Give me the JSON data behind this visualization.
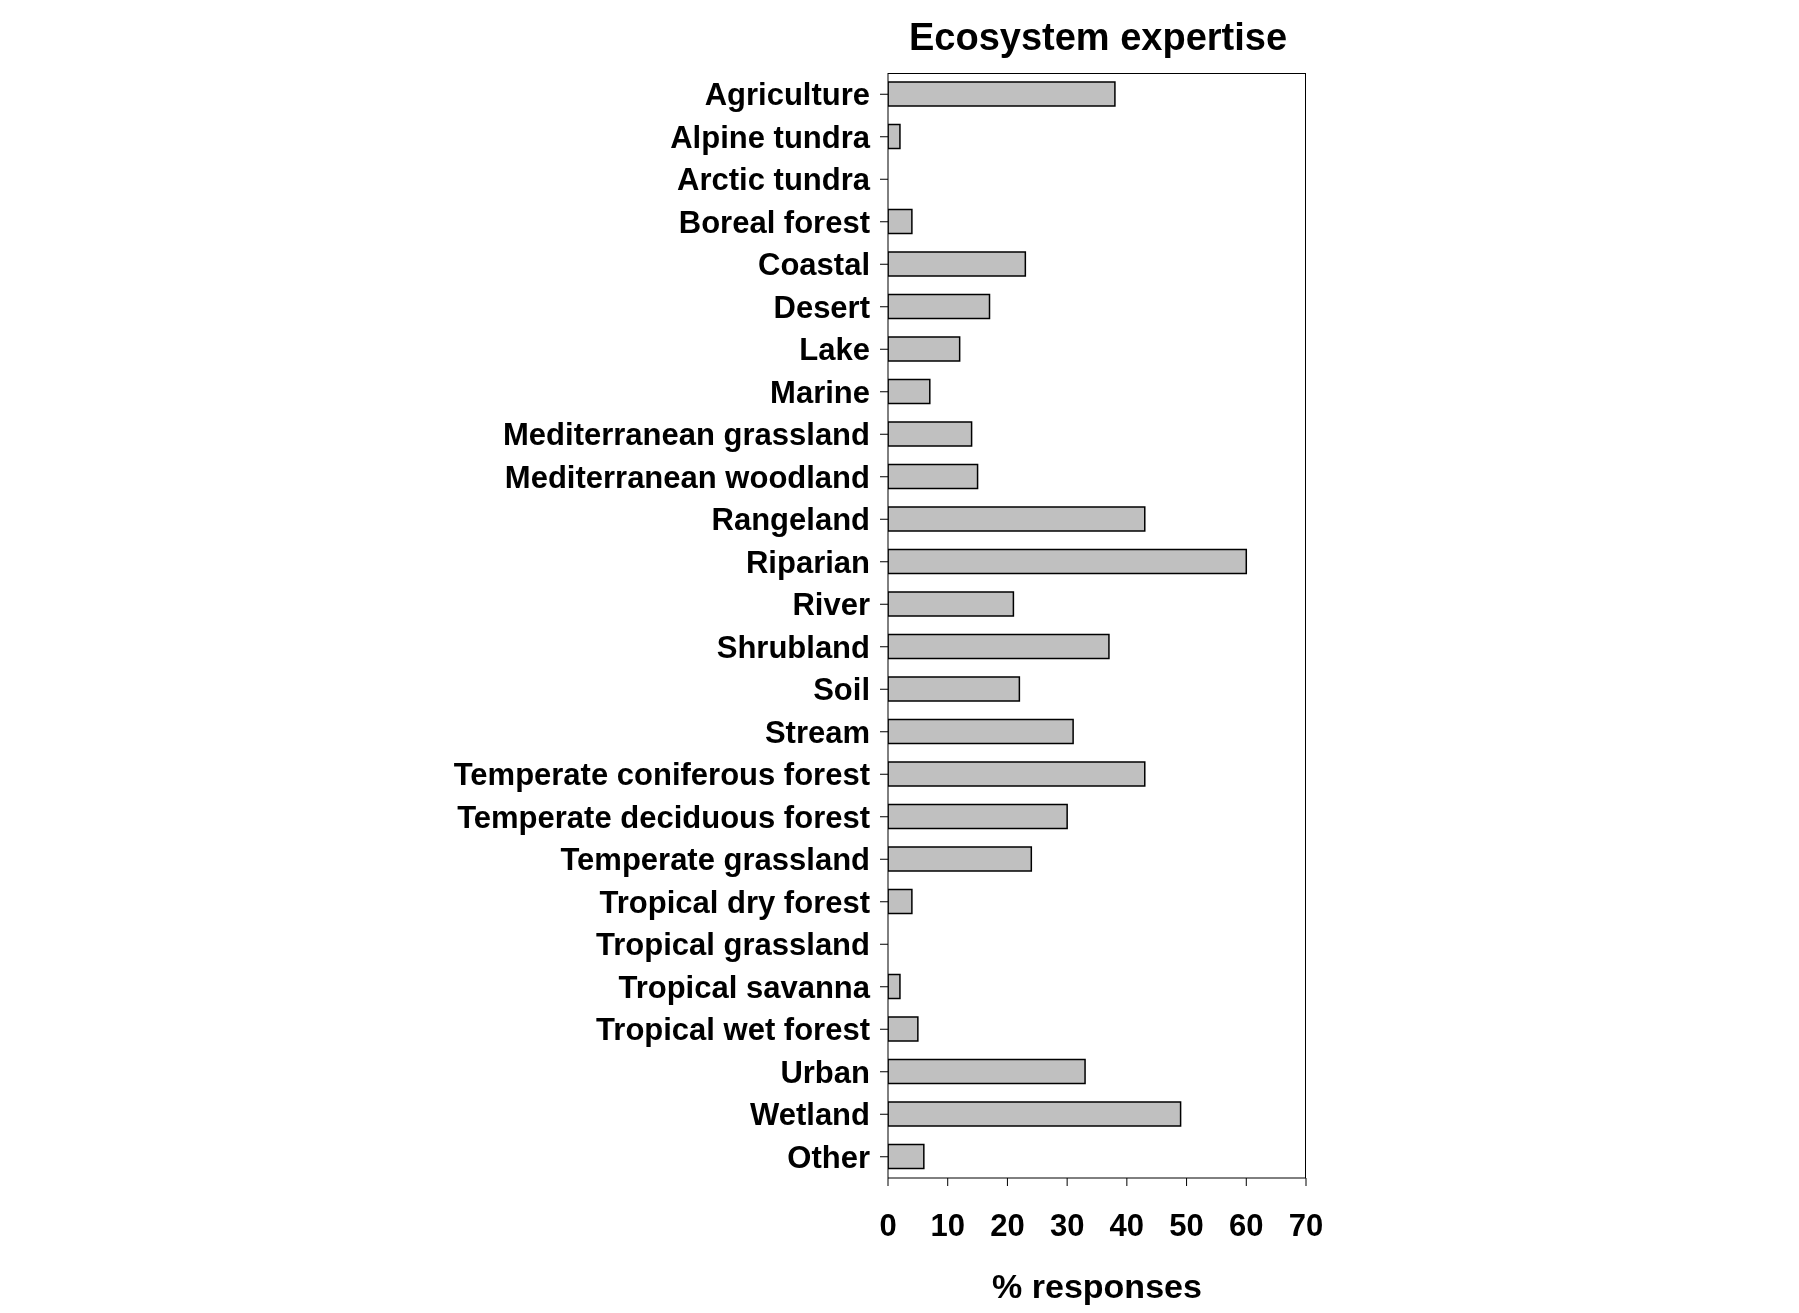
{
  "chart_data": {
    "type": "bar",
    "orientation": "horizontal",
    "title": "Ecosystem expertise",
    "xlabel": "% responses",
    "categories": [
      "Agriculture",
      "Alpine tundra",
      "Arctic tundra",
      "Boreal forest",
      "Coastal",
      "Desert",
      "Lake",
      "Marine",
      "Mediterranean grassland",
      "Mediterranean woodland",
      "Rangeland",
      "Riparian",
      "River",
      "Shrubland",
      "Soil",
      "Stream",
      "Temperate coniferous forest",
      "Temperate deciduous forest",
      "Temperate grassland",
      "Tropical dry forest",
      "Tropical grassland",
      "Tropical savanna",
      "Tropical wet forest",
      "Urban",
      "Wetland",
      "Other"
    ],
    "values": [
      38,
      2,
      0,
      4,
      23,
      17,
      12,
      7,
      14,
      15,
      43,
      60,
      21,
      37,
      22,
      31,
      43,
      30,
      24,
      4,
      0,
      2,
      5,
      33,
      49,
      6
    ],
    "color": "#c0c0c0",
    "xlim": [
      0,
      70
    ],
    "xticks": [
      0,
      10,
      20,
      30,
      40,
      50,
      60,
      70
    ]
  }
}
